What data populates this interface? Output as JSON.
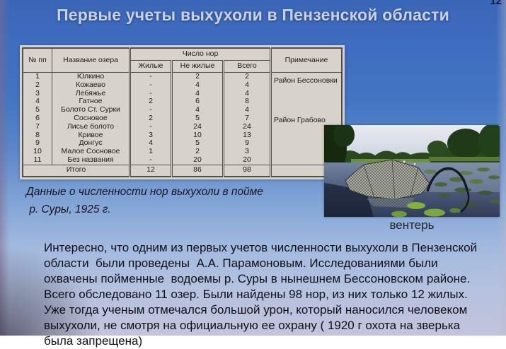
{
  "slide": {
    "page_number": "12",
    "title": "Первые учеты выхухоли в Пензенской области"
  },
  "table": {
    "headers": {
      "num": "№ пп",
      "lake": "Название озера",
      "burrows": "Число нор",
      "living": "Жилые",
      "nonliving": "Не жилые",
      "total": "Всего",
      "note": "Примечание"
    },
    "rows": [
      {
        "num": "1",
        "lake": "Юлкино",
        "living": "-",
        "nonliving": "2",
        "total": "2"
      },
      {
        "num": "2",
        "lake": "Кожаево",
        "living": "-",
        "nonliving": "4",
        "total": "4"
      },
      {
        "num": "3",
        "lake": "Лебяжье",
        "living": "-",
        "nonliving": "4",
        "total": "4"
      },
      {
        "num": "4",
        "lake": "Гатное",
        "living": "2",
        "nonliving": "6",
        "total": "8"
      },
      {
        "num": "5",
        "lake": "Болото Ст. Сурки",
        "living": "-",
        "nonliving": "4",
        "total": "4"
      },
      {
        "num": "6",
        "lake": "Сосновое",
        "living": "2",
        "nonliving": "5",
        "total": "7"
      },
      {
        "num": "7",
        "lake": "Лисье болото",
        "living": "-",
        "nonliving": "24",
        "total": "24"
      },
      {
        "num": "8",
        "lake": "Кривое",
        "living": "3",
        "nonliving": "10",
        "total": "13"
      },
      {
        "num": "9",
        "lake": "Донгус",
        "living": "4",
        "nonliving": "5",
        "total": "9"
      },
      {
        "num": "10",
        "lake": "Малое Сосновое",
        "living": "1",
        "nonliving": "2",
        "total": "3"
      },
      {
        "num": "11",
        "lake": "Без названия",
        "living": "-",
        "nonliving": "20",
        "total": "20"
      }
    ],
    "region_notes": {
      "bessonovka": "Район Бессоновки",
      "grabovo": "Район Грабово"
    },
    "total_row": {
      "label": "Итого",
      "living": "12",
      "nonliving": "86",
      "total": "98"
    }
  },
  "caption": {
    "text": "Данные о численности нор выхухоли в пойме\n р. Суры, 1925 г."
  },
  "photo": {
    "label": "вентерь"
  },
  "paragraph": {
    "text": "Интересно, что одним из первых учетов численности выхухоли в Пензенской\nобласти  были проведены  А.А. Парамоновым. Исследованиями были\nохвачены пойменные  водоемы р. Суры в нынешнем Бессоновском районе.\nВсего обследовано 11 озер. Были найдены 98 нор, из них только 12 жилых.\nУже тогда ученым отмечался большой урон, который наносился человеком\nвыхухоли, не смотря на официальную ее охрану ( 1920 г охота на зверька\nбыла запрещена)"
  }
}
